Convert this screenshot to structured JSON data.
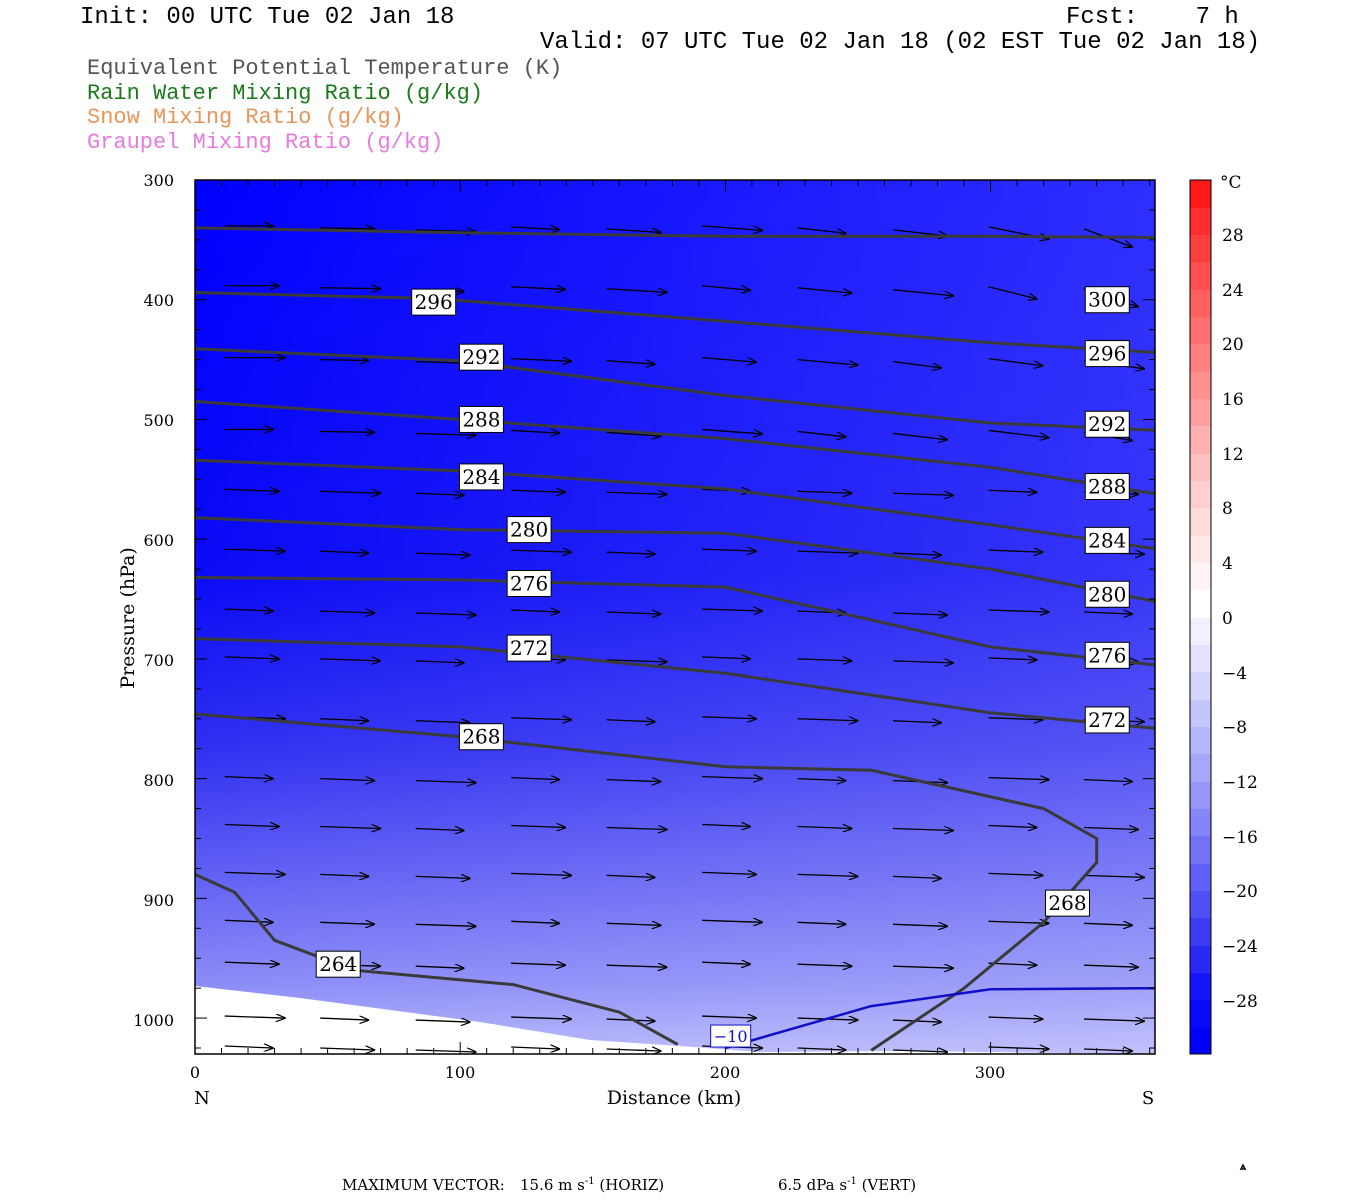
{
  "header": {
    "init": "Init: 00 UTC Tue 02 Jan 18",
    "fcst": "Fcst:    7 h",
    "valid": "Valid: 07 UTC Tue 02 Jan 18 (02 EST Tue 02 Jan 18)"
  },
  "legend": [
    {
      "label": "Equivalent Potential Temperature (K)",
      "color": "#555555"
    },
    {
      "label": "Rain Water Mixing Ratio (g/kg)",
      "color": "#1a7a1a"
    },
    {
      "label": "Snow Mixing Ratio (g/kg)",
      "color": "#e8955a"
    },
    {
      "label": "Graupel Mixing Ratio (g/kg)",
      "color": "#e87ae0"
    }
  ],
  "footer": {
    "label": "MAXIMUM VECTOR:",
    "horiz_value": "15.6 m s",
    "horiz_exp": "-1",
    "horiz_unit": " (HORIZ)",
    "vert_value": "6.5 dPa s",
    "vert_exp": "-1",
    "vert_unit": " (VERT)"
  },
  "chart_data": {
    "type": "cross-section",
    "xlabel": "Distance (km)",
    "ylabel": "Pressure (hPa)",
    "x_ticks": [
      "0",
      "100",
      "200",
      "300"
    ],
    "x_end_labels": {
      "left": "N",
      "right": "S"
    },
    "xlim": [
      0,
      362
    ],
    "y_ticks": [
      "300",
      "400",
      "500",
      "600",
      "700",
      "800",
      "900",
      "1000"
    ],
    "ylim": [
      1030,
      300
    ],
    "colorbar": {
      "unit": "°C",
      "labels": [
        "28",
        "24",
        "20",
        "16",
        "12",
        "8",
        "4",
        "0",
        "−4",
        "−8",
        "−12",
        "−16",
        "−20",
        "−24",
        "−28"
      ]
    },
    "theta_e_labels": [
      "296",
      "292",
      "288",
      "284",
      "280",
      "276",
      "272",
      "268",
      "264",
      "300",
      "296",
      "292",
      "288",
      "284",
      "280",
      "276",
      "272",
      "268"
    ],
    "temp_contour_label": "−10",
    "theta_e_contours": [
      {
        "label": "300",
        "points": [
          [
            0,
            340
          ],
          [
            100,
            344
          ],
          [
            200,
            347
          ],
          [
            300,
            347
          ],
          [
            362,
            348
          ]
        ]
      },
      {
        "label": "296",
        "points": [
          [
            0,
            394
          ],
          [
            90,
            399
          ],
          [
            200,
            418
          ],
          [
            300,
            436
          ],
          [
            362,
            444
          ]
        ]
      },
      {
        "label": "292",
        "points": [
          [
            0,
            441
          ],
          [
            100,
            451
          ],
          [
            200,
            480
          ],
          [
            300,
            503
          ],
          [
            362,
            509
          ]
        ]
      },
      {
        "label": "288",
        "points": [
          [
            0,
            485
          ],
          [
            100,
            500
          ],
          [
            200,
            516
          ],
          [
            300,
            540
          ],
          [
            362,
            562
          ]
        ]
      },
      {
        "label": "284",
        "points": [
          [
            0,
            534
          ],
          [
            100,
            543
          ],
          [
            200,
            558
          ],
          [
            300,
            588
          ],
          [
            362,
            608
          ]
        ]
      },
      {
        "label": "280",
        "points": [
          [
            0,
            582
          ],
          [
            100,
            592
          ],
          [
            200,
            595
          ],
          [
            300,
            625
          ],
          [
            362,
            652
          ]
        ]
      },
      {
        "label": "276",
        "points": [
          [
            0,
            632
          ],
          [
            100,
            634
          ],
          [
            200,
            640
          ],
          [
            300,
            690
          ],
          [
            362,
            705
          ]
        ]
      },
      {
        "label": "272",
        "points": [
          [
            0,
            683
          ],
          [
            100,
            690
          ],
          [
            200,
            712
          ],
          [
            300,
            745
          ],
          [
            362,
            758
          ]
        ]
      },
      {
        "label": "268",
        "points": [
          [
            0,
            746
          ],
          [
            100,
            765
          ],
          [
            200,
            790
          ],
          [
            255,
            793
          ],
          [
            320,
            825
          ],
          [
            340,
            850
          ],
          [
            340,
            870
          ],
          [
            320,
            920
          ],
          [
            290,
            975
          ],
          [
            255,
            1027
          ]
        ]
      },
      {
        "label": "264",
        "points": [
          [
            0,
            880
          ],
          [
            15,
            895
          ],
          [
            30,
            935
          ],
          [
            60,
            960
          ],
          [
            120,
            972
          ],
          [
            160,
            995
          ],
          [
            182,
            1022
          ]
        ]
      }
    ],
    "temp_contour": {
      "label": "−10",
      "points": [
        [
          200,
          1025
        ],
        [
          255,
          990
        ],
        [
          300,
          976
        ],
        [
          362,
          975
        ]
      ]
    },
    "max_vector": {
      "horiz": "15.6 m s-1",
      "vert": "6.5 dPa s-1"
    }
  }
}
